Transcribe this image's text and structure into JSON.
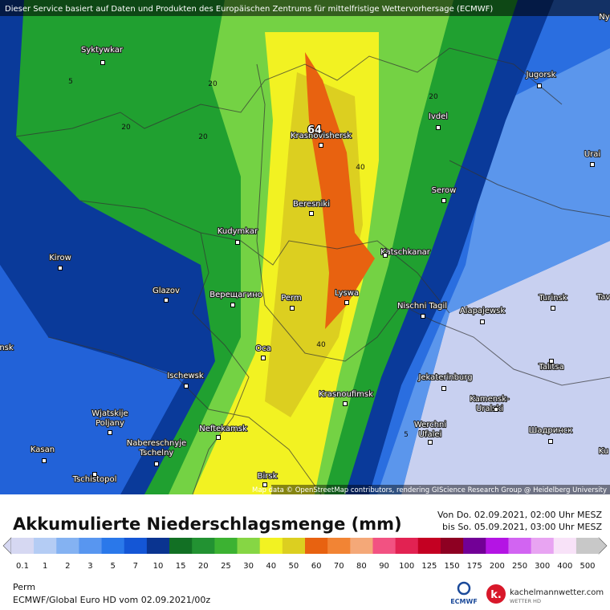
{
  "header": {
    "disclaimer": "Dieser Service basiert auf Daten und Produkten des Europäischen Zentrums für mittelfristige Wettervorhersage (ECMWF)"
  },
  "map": {
    "cities": [
      {
        "lines": [
          "Syktywkar"
        ]
      },
      {
        "lines": [
          "Kirow"
        ]
      },
      {
        "lines": [
          "Glazov"
        ]
      },
      {
        "lines": [
          "Kudymkar"
        ]
      },
      {
        "lines": [
          "Верещагино"
        ]
      },
      {
        "lines": [
          "Perm"
        ]
      },
      {
        "lines": [
          "Oca"
        ]
      },
      {
        "lines": [
          "Ischewsk"
        ]
      },
      {
        "lines": [
          "Wjatskije",
          "Poljany"
        ]
      },
      {
        "lines": [
          "Nabereschnyje",
          "Tschelny"
        ]
      },
      {
        "lines": [
          "Kasan"
        ]
      },
      {
        "lines": [
          "Tschistopol"
        ]
      },
      {
        "lines": [
          "Neftekamsk"
        ]
      },
      {
        "lines": [
          "Birsk"
        ]
      },
      {
        "lines": [
          "Krasnoufimsk"
        ]
      },
      {
        "lines": [
          "Lyswa"
        ]
      },
      {
        "lines": [
          "Beresniki"
        ]
      },
      {
        "lines": [
          "Krasnovishersk"
        ]
      },
      {
        "lines": [
          "Katschkanar"
        ]
      },
      {
        "lines": [
          "Nischni Tagil"
        ]
      },
      {
        "lines": [
          "Alapajewsk"
        ]
      },
      {
        "lines": [
          "Serow"
        ]
      },
      {
        "lines": [
          "Ivdel"
        ]
      },
      {
        "lines": [
          "Jugorsk"
        ]
      },
      {
        "lines": [
          "Urai"
        ]
      },
      {
        "lines": [
          "Turinsk"
        ]
      },
      {
        "lines": [
          "Jekaterinburg"
        ]
      },
      {
        "lines": [
          "Kamensk-",
          "Uralski"
        ]
      },
      {
        "lines": [
          "Werchni",
          "Ufalei"
        ]
      },
      {
        "lines": [
          "Talitsa"
        ]
      },
      {
        "lines": [
          "Шадринск"
        ]
      },
      {
        "lines": [
          "nsk"
        ]
      },
      {
        "lines": [
          "Ny"
        ]
      },
      {
        "lines": [
          "Tav"
        ]
      },
      {
        "lines": [
          "Ku"
        ]
      }
    ],
    "contour_labels": [
      "5",
      "20",
      "20",
      "20",
      "20",
      "40",
      "40",
      "64",
      "5"
    ],
    "attribution": "Map data © OpenStreetMap contributors, rendering GIScience Research Group @ Heidelberg University"
  },
  "footer": {
    "title": "Akkumulierte Niederschlagsmenge (mm)",
    "period_from": "Von Do. 02.09.2021, 02:00 Uhr MESZ",
    "period_to": "bis So. 05.09.2021, 03:00 Uhr MESZ",
    "location": "Perm",
    "model": "ECMWF/Global Euro HD vom  02.09.2021/00z",
    "ecmwf_logo": "ECMWF",
    "brand": "kachelmannwetter.com",
    "brand_sub": "WETTER HD"
  },
  "legend": {
    "items": [
      {
        "label": "0.1",
        "color": "#d6d8f2"
      },
      {
        "label": "1",
        "color": "#b4ccf4"
      },
      {
        "label": "2",
        "color": "#84b2f2"
      },
      {
        "label": "3",
        "color": "#5896f0"
      },
      {
        "label": "5",
        "color": "#2a78ea"
      },
      {
        "label": "7",
        "color": "#1456d6"
      },
      {
        "label": "10",
        "color": "#0a3490"
      },
      {
        "label": "15",
        "color": "#127024"
      },
      {
        "label": "20",
        "color": "#229232"
      },
      {
        "label": "25",
        "color": "#3cb232"
      },
      {
        "label": "30",
        "color": "#86d644"
      },
      {
        "label": "40",
        "color": "#f2f222"
      },
      {
        "label": "50",
        "color": "#dccf20"
      },
      {
        "label": "60",
        "color": "#e86210"
      },
      {
        "label": "70",
        "color": "#f28434"
      },
      {
        "label": "80",
        "color": "#f4a878"
      },
      {
        "label": "90",
        "color": "#f25282"
      },
      {
        "label": "100",
        "color": "#e22252"
      },
      {
        "label": "125",
        "color": "#c40022"
      },
      {
        "label": "150",
        "color": "#8e0022"
      },
      {
        "label": "175",
        "color": "#720096"
      },
      {
        "label": "200",
        "color": "#b414e4"
      },
      {
        "label": "250",
        "color": "#d264f2"
      },
      {
        "label": "300",
        "color": "#e8a4f2"
      },
      {
        "label": "400",
        "color": "#f8e2f8"
      },
      {
        "label": "500",
        "color": "#c8c8c8"
      }
    ]
  }
}
